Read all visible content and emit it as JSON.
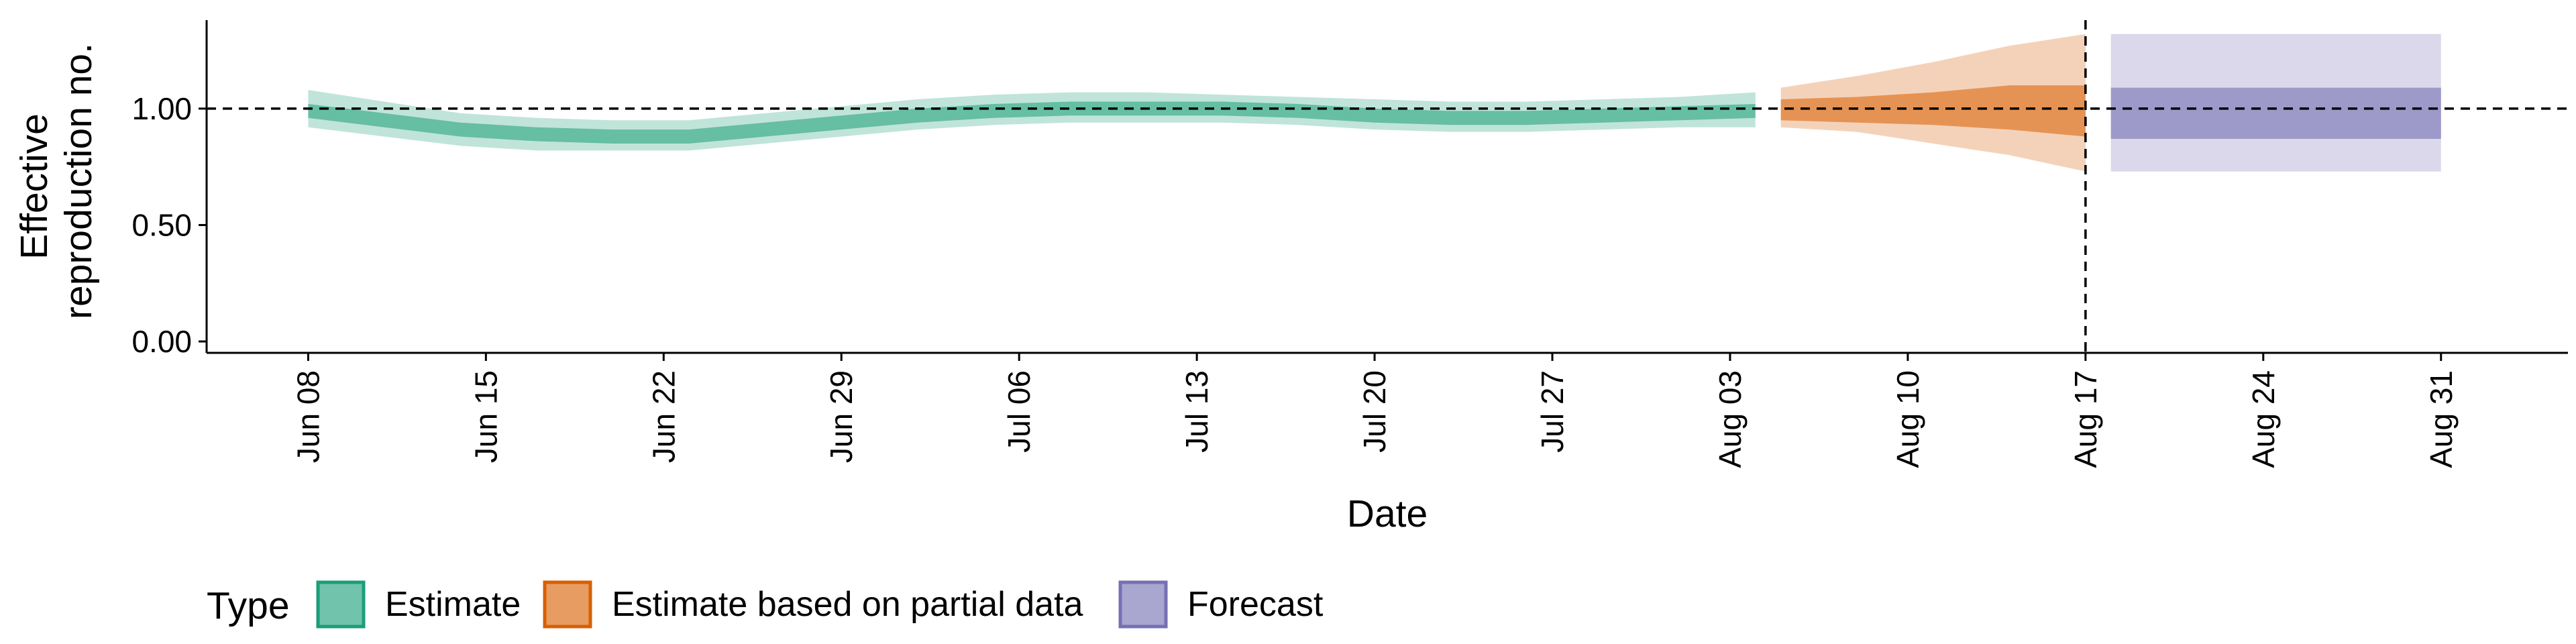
{
  "chart_data": {
    "type": "area",
    "title": "",
    "xlabel": "Date",
    "ylabel_lines": [
      "Effective",
      "reproduction no."
    ],
    "x_ticks": [
      "Jun 08",
      "Jun 15",
      "Jun 22",
      "Jun 29",
      "Jul 06",
      "Jul 13",
      "Jul 20",
      "Jul 27",
      "Aug 03",
      "Aug 10",
      "Aug 17",
      "Aug 24",
      "Aug 31"
    ],
    "x_tick_dates": [
      "2020-06-08",
      "2020-06-15",
      "2020-06-22",
      "2020-06-29",
      "2020-07-06",
      "2020-07-13",
      "2020-07-20",
      "2020-07-27",
      "2020-08-03",
      "2020-08-10",
      "2020-08-17",
      "2020-08-24",
      "2020-08-31"
    ],
    "xlim": [
      "2020-06-04",
      "2020-09-05"
    ],
    "y_ticks": [
      "0.00",
      "0.50",
      "1.00"
    ],
    "ylim": [
      0,
      1.38
    ],
    "reference_line_y": 1.0,
    "reference_line_date": "2020-08-17",
    "legend": {
      "title": "Type",
      "position": "bottom-left",
      "items": [
        {
          "label": "Estimate",
          "color": "#1b9e77"
        },
        {
          "label": "Estimate based on partial data",
          "color": "#d95f02"
        },
        {
          "label": "Forecast",
          "color": "#7570b3"
        }
      ]
    },
    "series": [
      {
        "name": "Estimate",
        "color": "#1b9e77",
        "points": [
          {
            "date": "2020-06-08",
            "median": 0.99,
            "lower_50": 0.96,
            "upper_50": 1.02,
            "lower_90": 0.92,
            "upper_90": 1.08
          },
          {
            "date": "2020-06-11",
            "median": 0.95,
            "lower_50": 0.92,
            "upper_50": 0.98,
            "lower_90": 0.88,
            "upper_90": 1.03
          },
          {
            "date": "2020-06-14",
            "median": 0.91,
            "lower_50": 0.88,
            "upper_50": 0.94,
            "lower_90": 0.84,
            "upper_90": 0.98
          },
          {
            "date": "2020-06-17",
            "median": 0.89,
            "lower_50": 0.86,
            "upper_50": 0.92,
            "lower_90": 0.82,
            "upper_90": 0.96
          },
          {
            "date": "2020-06-20",
            "median": 0.88,
            "lower_50": 0.85,
            "upper_50": 0.91,
            "lower_90": 0.82,
            "upper_90": 0.95
          },
          {
            "date": "2020-06-23",
            "median": 0.88,
            "lower_50": 0.85,
            "upper_50": 0.91,
            "lower_90": 0.82,
            "upper_90": 0.95
          },
          {
            "date": "2020-06-26",
            "median": 0.91,
            "lower_50": 0.88,
            "upper_50": 0.94,
            "lower_90": 0.85,
            "upper_90": 0.98
          },
          {
            "date": "2020-06-29",
            "median": 0.94,
            "lower_50": 0.91,
            "upper_50": 0.97,
            "lower_90": 0.88,
            "upper_90": 1.01
          },
          {
            "date": "2020-07-02",
            "median": 0.97,
            "lower_50": 0.94,
            "upper_50": 1.0,
            "lower_90": 0.91,
            "upper_90": 1.04
          },
          {
            "date": "2020-07-05",
            "median": 0.99,
            "lower_50": 0.96,
            "upper_50": 1.02,
            "lower_90": 0.93,
            "upper_90": 1.06
          },
          {
            "date": "2020-07-08",
            "median": 1.0,
            "lower_50": 0.97,
            "upper_50": 1.03,
            "lower_90": 0.94,
            "upper_90": 1.07
          },
          {
            "date": "2020-07-11",
            "median": 1.0,
            "lower_50": 0.97,
            "upper_50": 1.03,
            "lower_90": 0.94,
            "upper_90": 1.07
          },
          {
            "date": "2020-07-14",
            "median": 1.0,
            "lower_50": 0.97,
            "upper_50": 1.03,
            "lower_90": 0.94,
            "upper_90": 1.06
          },
          {
            "date": "2020-07-17",
            "median": 0.99,
            "lower_50": 0.96,
            "upper_50": 1.02,
            "lower_90": 0.93,
            "upper_90": 1.05
          },
          {
            "date": "2020-07-20",
            "median": 0.97,
            "lower_50": 0.94,
            "upper_50": 1.0,
            "lower_90": 0.91,
            "upper_90": 1.04
          },
          {
            "date": "2020-07-23",
            "median": 0.96,
            "lower_50": 0.93,
            "upper_50": 0.99,
            "lower_90": 0.9,
            "upper_90": 1.03
          },
          {
            "date": "2020-07-26",
            "median": 0.96,
            "lower_50": 0.93,
            "upper_50": 0.99,
            "lower_90": 0.9,
            "upper_90": 1.03
          },
          {
            "date": "2020-07-29",
            "median": 0.97,
            "lower_50": 0.94,
            "upper_50": 1.0,
            "lower_90": 0.91,
            "upper_90": 1.04
          },
          {
            "date": "2020-08-01",
            "median": 0.98,
            "lower_50": 0.95,
            "upper_50": 1.01,
            "lower_90": 0.92,
            "upper_90": 1.05
          },
          {
            "date": "2020-08-04",
            "median": 0.99,
            "lower_50": 0.96,
            "upper_50": 1.02,
            "lower_90": 0.92,
            "upper_90": 1.07
          }
        ]
      },
      {
        "name": "Estimate based on partial data",
        "color": "#d95f02",
        "points": [
          {
            "date": "2020-08-05",
            "median": 1.0,
            "lower_50": 0.95,
            "upper_50": 1.04,
            "lower_90": 0.92,
            "upper_90": 1.09
          },
          {
            "date": "2020-08-08",
            "median": 1.0,
            "lower_50": 0.94,
            "upper_50": 1.05,
            "lower_90": 0.9,
            "upper_90": 1.14
          },
          {
            "date": "2020-08-11",
            "median": 0.99,
            "lower_50": 0.93,
            "upper_50": 1.07,
            "lower_90": 0.85,
            "upper_90": 1.2
          },
          {
            "date": "2020-08-14",
            "median": 0.99,
            "lower_50": 0.91,
            "upper_50": 1.1,
            "lower_90": 0.8,
            "upper_90": 1.27
          },
          {
            "date": "2020-08-17",
            "median": 0.98,
            "lower_50": 0.88,
            "upper_50": 1.1,
            "lower_90": 0.73,
            "upper_90": 1.32
          }
        ]
      },
      {
        "name": "Forecast",
        "color": "#7570b3",
        "points": [
          {
            "date": "2020-08-18",
            "median": 0.98,
            "lower_50": 0.87,
            "upper_50": 1.09,
            "lower_90": 0.73,
            "upper_90": 1.32
          },
          {
            "date": "2020-08-31",
            "median": 0.98,
            "lower_50": 0.87,
            "upper_50": 1.09,
            "lower_90": 0.73,
            "upper_90": 1.32
          }
        ]
      }
    ]
  }
}
